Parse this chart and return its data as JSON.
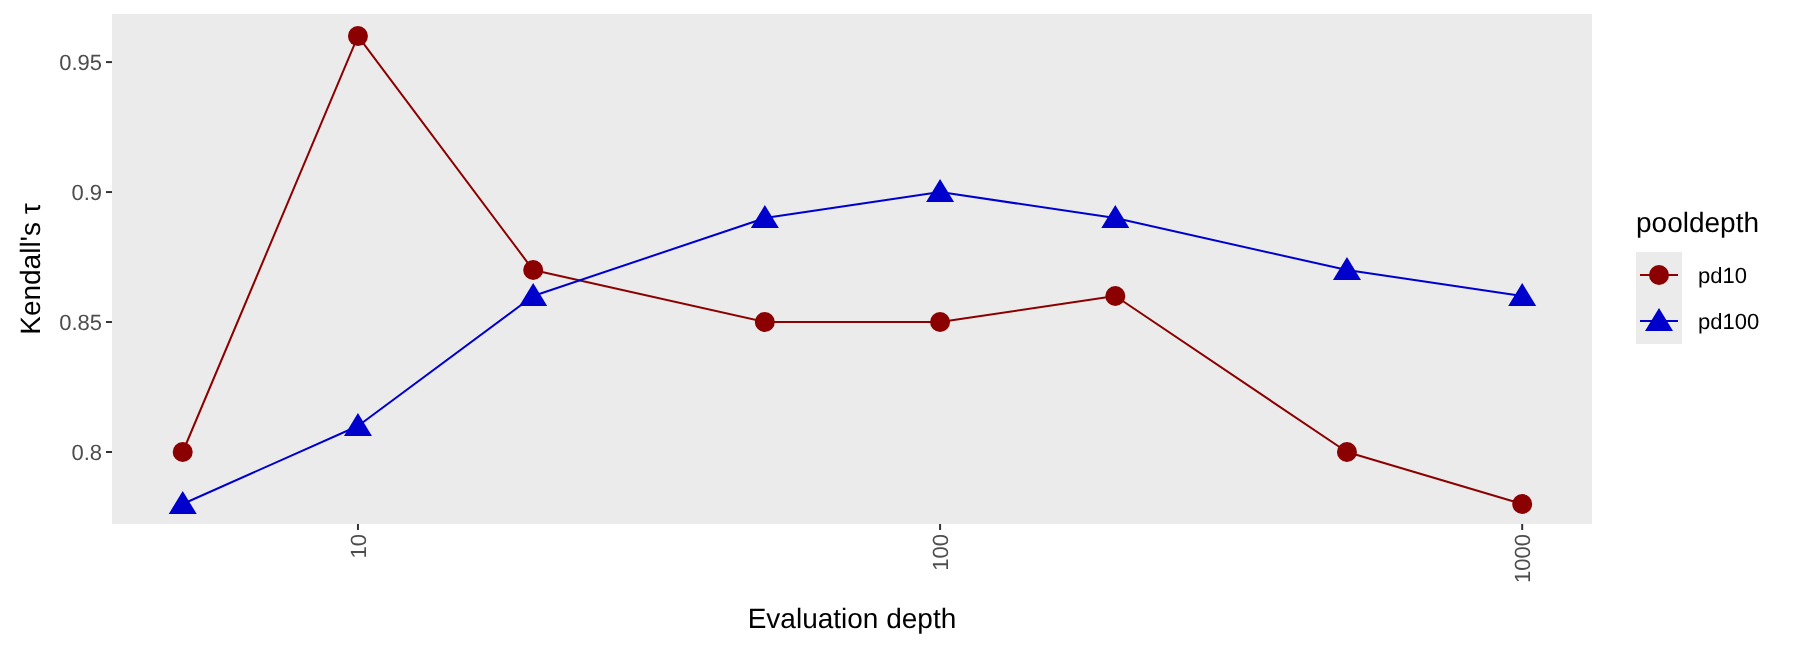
{
  "chart_data": {
    "type": "line",
    "xlabel": "Evaluation depth",
    "ylabel": "Kendall's τ",
    "legend_title": "pooldepth",
    "log": "x",
    "x": [
      5,
      10,
      20,
      50,
      100,
      200,
      500,
      1000
    ],
    "series": [
      {
        "name": "pd10",
        "color": "#8b0000",
        "marker": "circle",
        "values": [
          0.8,
          0.96,
          0.87,
          0.85,
          0.85,
          0.86,
          0.8,
          0.78
        ]
      },
      {
        "name": "pd100",
        "color": "#0000cd",
        "marker": "triangle",
        "values": [
          0.78,
          0.81,
          0.86,
          0.89,
          0.9,
          0.89,
          0.87,
          0.86
        ]
      }
    ],
    "xlim": [
      3.78,
      1318
    ],
    "xticks": [
      10,
      100,
      1000
    ],
    "ylim": [
      0.7723,
      0.9685
    ],
    "yticks": [
      0.8,
      0.85,
      0.9,
      0.95
    ],
    "grid": false,
    "legend": "right",
    "line_style": "solid"
  }
}
